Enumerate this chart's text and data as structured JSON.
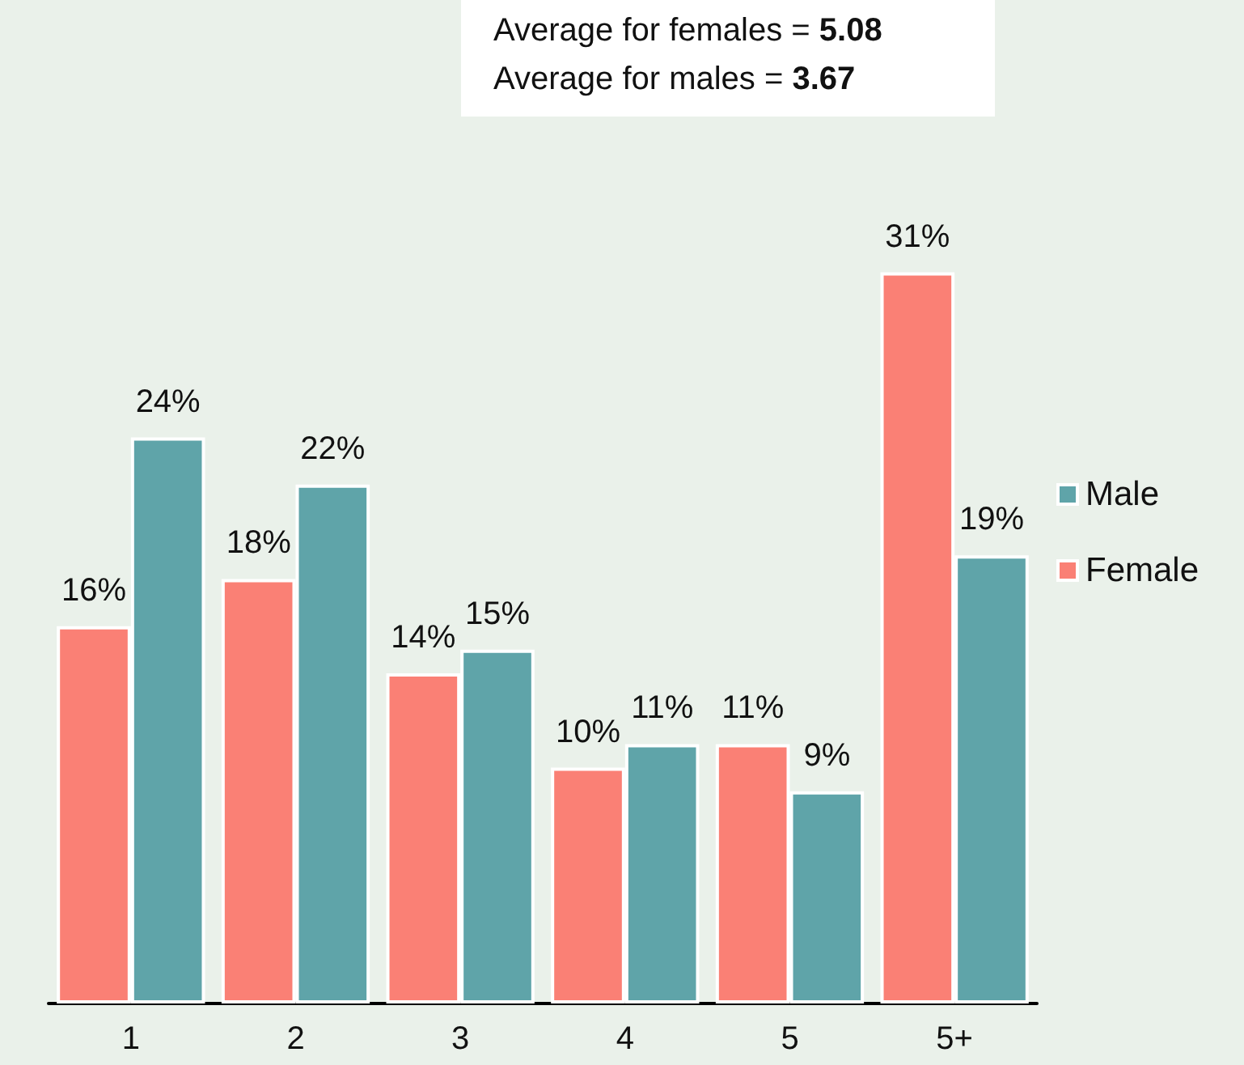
{
  "chart_data": {
    "type": "bar",
    "categories": [
      "1",
      "2",
      "3",
      "4",
      "5",
      "5+"
    ],
    "series": [
      {
        "name": "Female",
        "color": "#fa8075",
        "values": [
          16,
          18,
          14,
          10,
          11,
          31
        ],
        "value_labels": [
          "16%",
          "18%",
          "14%",
          "10%",
          "11%",
          "31%"
        ]
      },
      {
        "name": "Male",
        "color": "#5fa4a9",
        "values": [
          24,
          22,
          15,
          11,
          9,
          19
        ],
        "value_labels": [
          "24%",
          "22%",
          "15%",
          "11%",
          "9%",
          "19%"
        ]
      }
    ],
    "annotations": [
      "Average for females = 5.08",
      "Average for males = 3.67"
    ],
    "legend": "right"
  }
}
